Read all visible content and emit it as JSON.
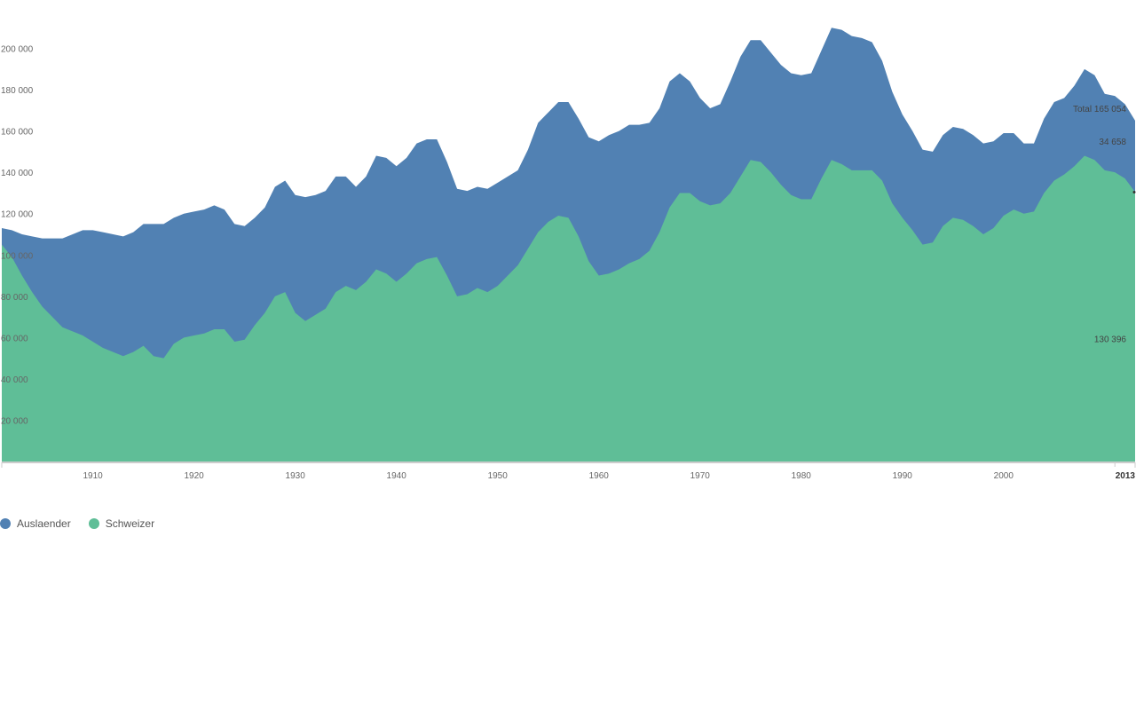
{
  "colors": {
    "auslaender": "#5181b3",
    "schweizer": "#5fbe97",
    "axis": "#cccccc"
  },
  "chart_data": {
    "type": "area",
    "stacked": true,
    "ylim": [
      0,
      220000
    ],
    "xlim": [
      1901,
      2013
    ],
    "y_ticks": [
      20000,
      40000,
      60000,
      80000,
      100000,
      120000,
      140000,
      160000,
      180000,
      200000
    ],
    "y_tick_labels": [
      "20 000",
      "40 000",
      "60 000",
      "80 000",
      "100 000",
      "120 000",
      "140 000",
      "160 000",
      "180 000",
      "200 000"
    ],
    "x_ticks": [
      1910,
      1920,
      1930,
      1940,
      1950,
      1960,
      1970,
      1980,
      1990,
      2000
    ],
    "x_tick_labels": [
      "1910",
      "1920",
      "1930",
      "1940",
      "1950",
      "1960",
      "1970",
      "1980",
      "1990",
      "2000"
    ],
    "x_end_label": "2013",
    "total_label": "Total 165 054",
    "auslaender_end_label": "34 658",
    "schweizer_end_label": "130 396",
    "legend": [
      "Auslaender",
      "Schweizer"
    ],
    "x": [
      1901,
      1902,
      1903,
      1904,
      1905,
      1906,
      1907,
      1908,
      1909,
      1910,
      1911,
      1912,
      1913,
      1914,
      1915,
      1916,
      1917,
      1918,
      1919,
      1920,
      1921,
      1922,
      1923,
      1924,
      1925,
      1926,
      1927,
      1928,
      1929,
      1930,
      1931,
      1932,
      1933,
      1934,
      1935,
      1936,
      1937,
      1938,
      1939,
      1940,
      1941,
      1942,
      1943,
      1944,
      1945,
      1946,
      1947,
      1948,
      1949,
      1950,
      1951,
      1952,
      1953,
      1954,
      1955,
      1956,
      1957,
      1958,
      1959,
      1960,
      1961,
      1962,
      1963,
      1964,
      1965,
      1966,
      1967,
      1968,
      1969,
      1970,
      1971,
      1972,
      1973,
      1974,
      1975,
      1976,
      1977,
      1978,
      1979,
      1980,
      1981,
      1982,
      1983,
      1984,
      1985,
      1986,
      1987,
      1988,
      1989,
      1990,
      1991,
      1992,
      1993,
      1994,
      1995,
      1996,
      1997,
      1998,
      1999,
      2000,
      2001,
      2002,
      2003,
      2004,
      2005,
      2006,
      2007,
      2008,
      2009,
      2010,
      2011,
      2012,
      2013
    ],
    "series": [
      {
        "name": "Schweizer",
        "values": [
          105000,
          99000,
          90000,
          82000,
          75000,
          70000,
          65000,
          63000,
          61000,
          58000,
          55000,
          53000,
          51000,
          53000,
          56000,
          51000,
          50000,
          57000,
          60000,
          61000,
          62000,
          64000,
          64000,
          58000,
          59000,
          66000,
          72000,
          80000,
          82000,
          72000,
          68000,
          71000,
          74000,
          82000,
          85000,
          83000,
          87000,
          93000,
          91000,
          87000,
          91000,
          96000,
          98000,
          99000,
          90000,
          80000,
          81000,
          84000,
          82000,
          85000,
          90000,
          95000,
          103000,
          111000,
          116000,
          119000,
          118000,
          109000,
          97000,
          90000,
          91000,
          93000,
          96000,
          98000,
          102000,
          111000,
          123000,
          130000,
          130000,
          126000,
          124000,
          125000,
          130000,
          138000,
          146000,
          145000,
          140000,
          134000,
          129000,
          127000,
          127000,
          137000,
          146000,
          144000,
          141000,
          141000,
          141000,
          136000,
          125000,
          118000,
          112000,
          105000,
          106000,
          114000,
          118000,
          117000,
          114000,
          110000,
          113000,
          119000,
          122000,
          120000,
          121000,
          130000,
          136000,
          139000,
          143000,
          148000,
          146000,
          141000,
          140000,
          137000,
          130396
        ]
      },
      {
        "name": "Auslaender",
        "values": [
          8000,
          13000,
          20000,
          27000,
          33000,
          38000,
          43000,
          47000,
          51000,
          54000,
          56000,
          57000,
          58000,
          58000,
          59000,
          64000,
          65000,
          61000,
          60000,
          60000,
          60000,
          60000,
          58000,
          57000,
          55000,
          52000,
          51000,
          53000,
          54000,
          57000,
          60000,
          58000,
          57000,
          56000,
          53000,
          50000,
          51000,
          55000,
          56000,
          56000,
          56000,
          58000,
          58000,
          57000,
          55000,
          52000,
          50000,
          49000,
          50000,
          50000,
          48000,
          46000,
          48000,
          53000,
          53000,
          55000,
          56000,
          57000,
          60000,
          65000,
          67000,
          67000,
          67000,
          65000,
          62000,
          60000,
          61000,
          58000,
          54000,
          50000,
          47000,
          48000,
          54000,
          58000,
          58000,
          59000,
          58000,
          58000,
          59000,
          60000,
          61000,
          62000,
          64000,
          65000,
          65000,
          64000,
          62000,
          58000,
          54000,
          50000,
          48000,
          46000,
          44000,
          44000,
          44000,
          44000,
          44000,
          44000,
          42000,
          40000,
          37000,
          34000,
          33000,
          36000,
          38000,
          37000,
          39000,
          42000,
          41000,
          37000,
          37000,
          36000,
          34658
        ]
      }
    ]
  }
}
